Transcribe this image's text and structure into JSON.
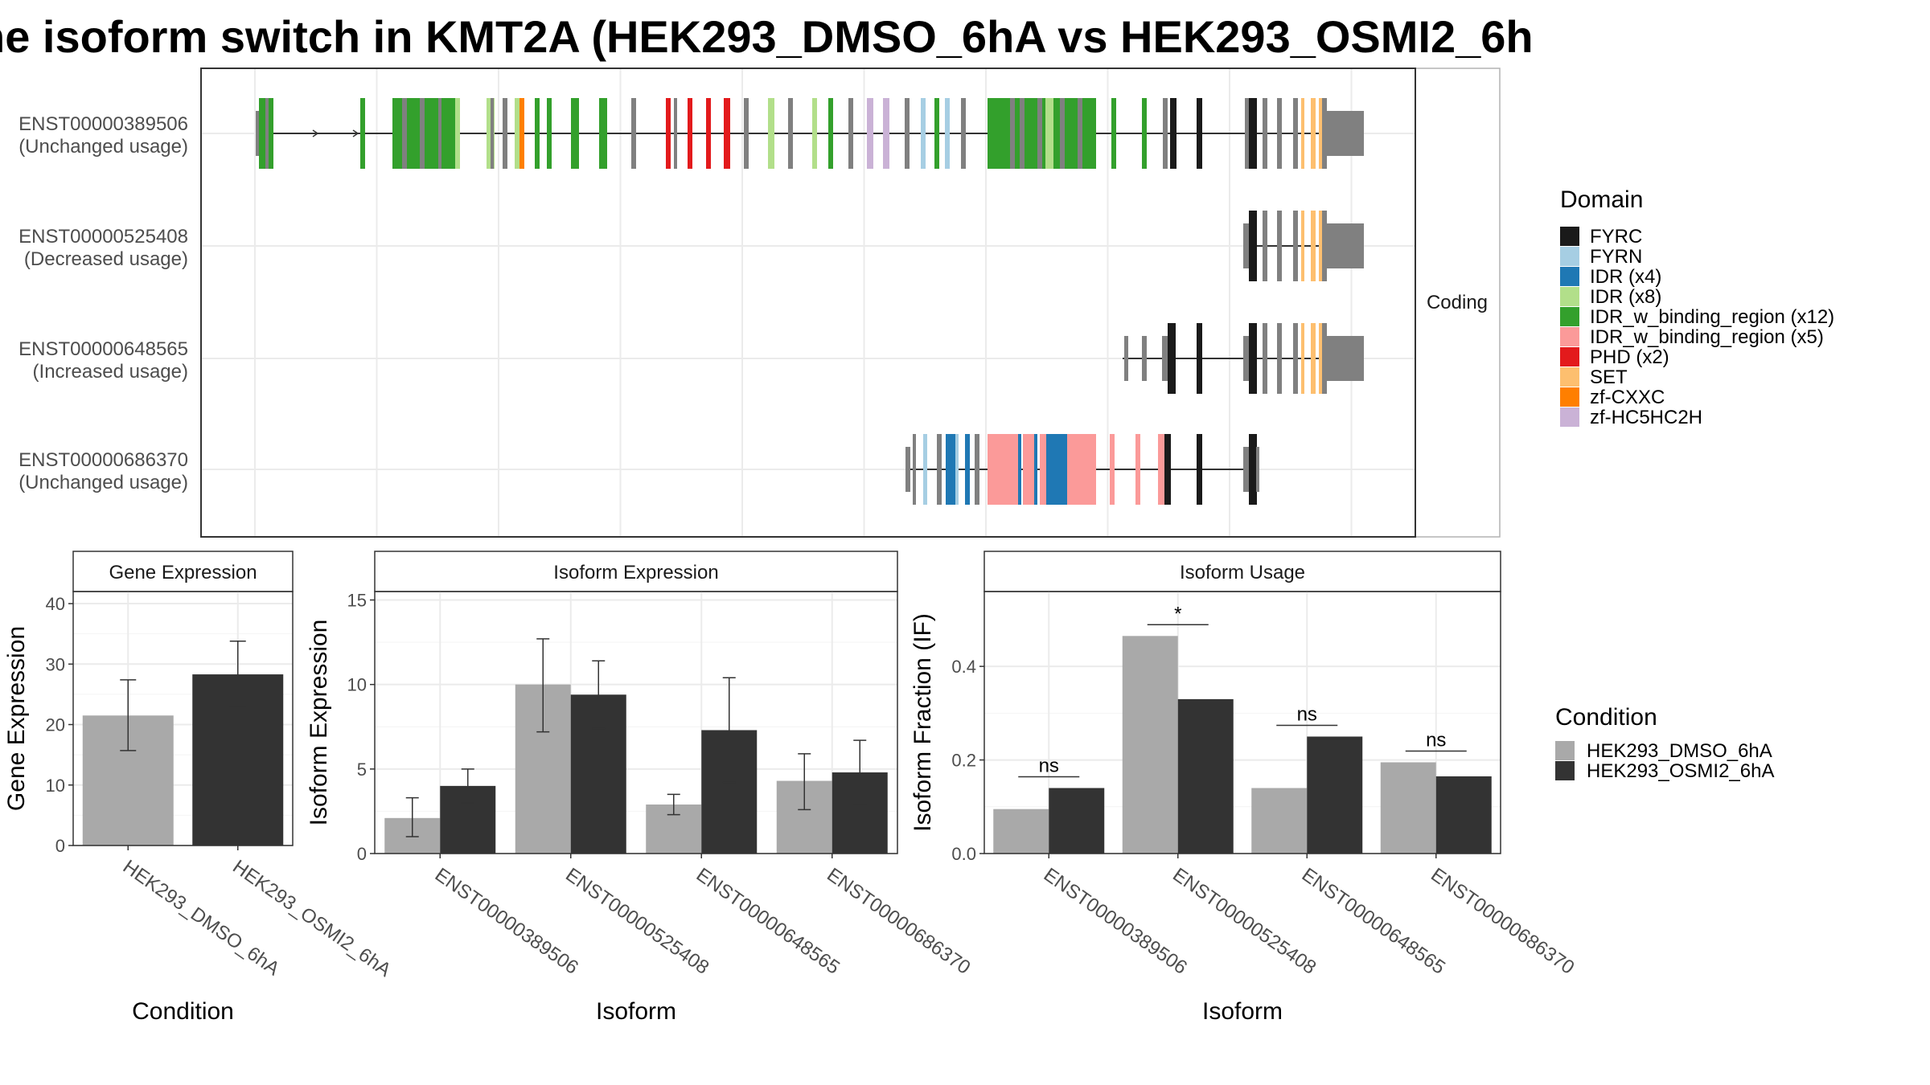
{
  "title": "he isoform switch in KMT2A (HEK293_DMSO_6hA vs HEK293_OSMI2_6h",
  "transcript_panel": {
    "facet_label": "Coding",
    "transcripts": [
      {
        "id": "ENST00000389506",
        "usage": "(Unchanged usage)"
      },
      {
        "id": "ENST00000525408",
        "usage": "(Decreased usage)"
      },
      {
        "id": "ENST00000648565",
        "usage": "(Increased usage)"
      },
      {
        "id": "ENST00000686370",
        "usage": "(Unchanged usage)"
      }
    ]
  },
  "domain_legend": {
    "title": "Domain",
    "entries": [
      {
        "label": "FYRC",
        "color": "#1a1a1a"
      },
      {
        "label": "FYRN",
        "color": "#a6cee3"
      },
      {
        "label": "IDR (x4)",
        "color": "#1f78b4"
      },
      {
        "label": "IDR (x8)",
        "color": "#b2df8a"
      },
      {
        "label": "IDR_w_binding_region (x12)",
        "color": "#33a02c"
      },
      {
        "label": "IDR_w_binding_region (x5)",
        "color": "#fb9a99"
      },
      {
        "label": "PHD (x2)",
        "color": "#e31a1c"
      },
      {
        "label": "SET",
        "color": "#fdbf6f"
      },
      {
        "label": "zf-CXXC",
        "color": "#ff7f00"
      },
      {
        "label": "zf-HC5HC2H",
        "color": "#cab2d6"
      }
    ]
  },
  "condition_legend": {
    "title": "Condition",
    "entries": [
      {
        "label": "HEK293_DMSO_6hA",
        "color": "#a9a9a9"
      },
      {
        "label": "HEK293_OSMI2_6hA",
        "color": "#333333"
      }
    ]
  },
  "chart_data": [
    {
      "type": "bar",
      "title": "Gene Expression",
      "xlabel": "Condition",
      "ylabel": "Gene Expression",
      "ylim": [
        0,
        42
      ],
      "yticks": [
        0,
        10,
        20,
        30,
        40
      ],
      "categories": [
        "HEK293_DMSO_6hA",
        "HEK293_OSMI2_6hA"
      ],
      "values": [
        21.5,
        28.3
      ],
      "errors": [
        [
          15.7,
          27.4
        ],
        [
          23.0,
          33.8
        ]
      ]
    },
    {
      "type": "bar",
      "title": "Isoform Expression",
      "xlabel": "Isoform",
      "ylabel": "Isoform Expression",
      "ylim": [
        0,
        15.5
      ],
      "yticks": [
        0,
        5,
        10,
        15
      ],
      "categories": [
        "ENST00000389506",
        "ENST00000525408",
        "ENST00000648565",
        "ENST00000686370"
      ],
      "series": [
        {
          "name": "HEK293_DMSO_6hA",
          "values": [
            2.1,
            10.0,
            2.9,
            4.3
          ],
          "errors": [
            [
              1.0,
              3.3
            ],
            [
              7.2,
              12.7
            ],
            [
              2.3,
              3.5
            ],
            [
              2.6,
              5.9
            ]
          ]
        },
        {
          "name": "HEK293_OSMI2_6hA",
          "values": [
            4.0,
            9.4,
            7.3,
            4.8
          ],
          "errors": [
            [
              3.0,
              5.0
            ],
            [
              7.4,
              11.4
            ],
            [
              4.2,
              10.4
            ],
            [
              2.9,
              6.7
            ]
          ]
        }
      ]
    },
    {
      "type": "bar",
      "title": "Isoform Usage",
      "xlabel": "Isoform",
      "ylabel": "Isoform Fraction (IF)",
      "ylim": [
        0,
        0.56
      ],
      "yticks": [
        0.0,
        0.2,
        0.4
      ],
      "categories": [
        "ENST00000389506",
        "ENST00000525408",
        "ENST00000648565",
        "ENST00000686370"
      ],
      "series": [
        {
          "name": "HEK293_DMSO_6hA",
          "values": [
            0.095,
            0.465,
            0.14,
            0.195
          ]
        },
        {
          "name": "HEK293_OSMI2_6hA",
          "values": [
            0.14,
            0.33,
            0.25,
            0.165
          ]
        }
      ],
      "significance": [
        "ns",
        "*",
        "ns",
        "ns"
      ]
    }
  ]
}
